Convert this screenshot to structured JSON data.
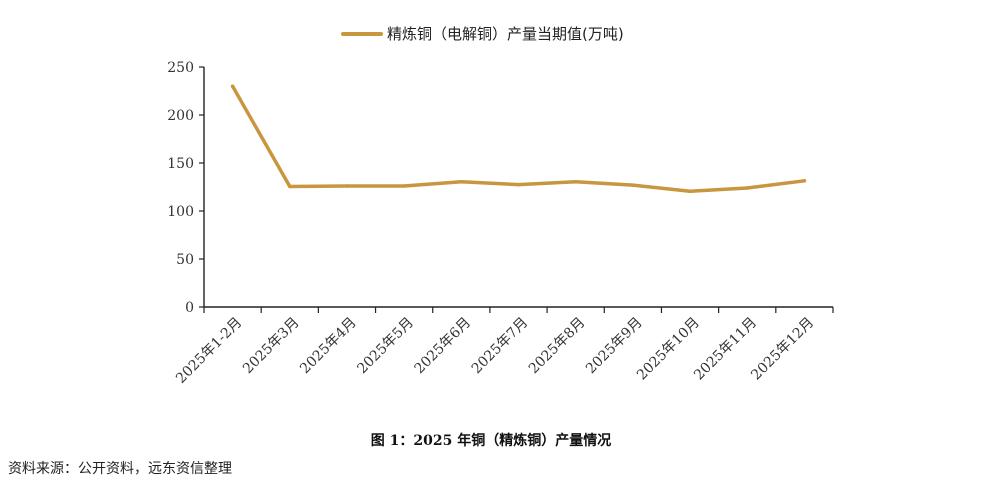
{
  "chart_data": {
    "type": "line",
    "categories": [
      "2025年1-2月",
      "2025年3月",
      "2025年4月",
      "2025年5月",
      "2025年6月",
      "2025年7月",
      "2025年8月",
      "2025年9月",
      "2025年10月",
      "2025年11月",
      "2025年12月"
    ],
    "series": [
      {
        "name": "精炼铜（电解铜）产量当期值(万吨)",
        "values": [
          230,
          125.5,
          126,
          126,
          130.5,
          127.5,
          130.5,
          127,
          120.5,
          124,
          131.5
        ],
        "color": "#C8963E"
      }
    ],
    "yticks": [
      0,
      50,
      100,
      150,
      200,
      250
    ],
    "ylim": [
      0,
      250
    ],
    "legend_position": "top-center",
    "grid": false,
    "title": "",
    "xlabel": "",
    "ylabel": ""
  },
  "caption": "图 1：2025 年铜（精炼铜）产量情况",
  "source": "资料来源：公开资料，远东资信整理"
}
